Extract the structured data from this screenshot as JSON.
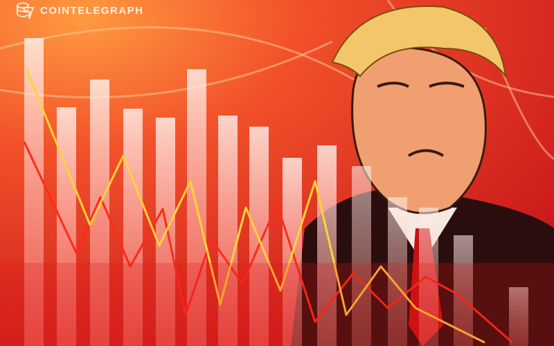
{
  "brand": {
    "name": "COINTELEGRAPH",
    "logo_icon": "cointelegraph-coin-logo-icon"
  },
  "colors": {
    "background": "#e8331f",
    "background_light": "#ff8a3a",
    "bars": "#ffe6e0",
    "line_yellow": "#ffd23a",
    "line_red": "#ff2a1a",
    "suit": "#2a0d0d",
    "skin": "#f0a070",
    "hair": "#f3c66a"
  }
}
